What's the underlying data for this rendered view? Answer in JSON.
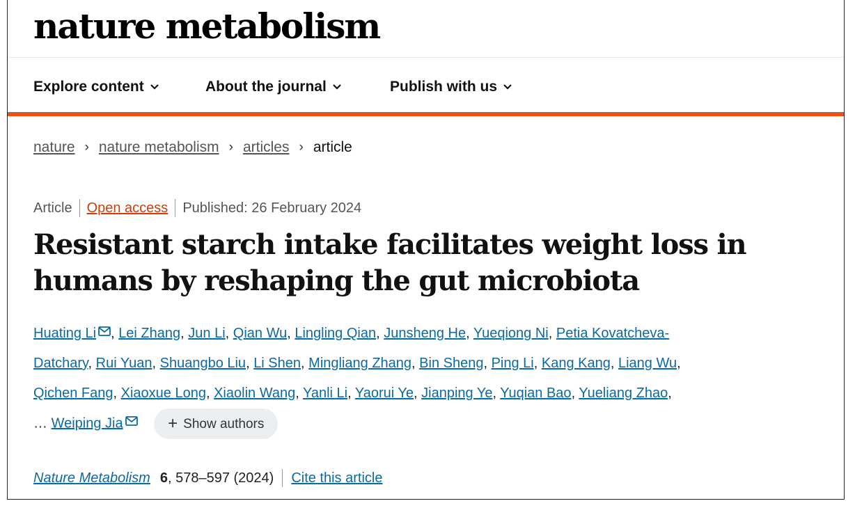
{
  "header": {
    "logo": "nature metabolism"
  },
  "nav": {
    "items": [
      {
        "label": "Explore content"
      },
      {
        "label": "About the journal"
      },
      {
        "label": "Publish with us"
      }
    ]
  },
  "breadcrumb": {
    "items": [
      "nature",
      "nature metabolism",
      "articles"
    ],
    "separator": "›",
    "current": "article"
  },
  "article": {
    "type": "Article",
    "access": "Open access",
    "published": "Published: 26 February 2024",
    "title": "Resistant starch intake facilitates weight loss in humans by reshaping the gut microbiota",
    "authors_line1": [
      "Huating Li",
      "Lei Zhang",
      "Jun Li",
      "Qian Wu",
      "Lingling Qian",
      "Junsheng He",
      "Yueqiong Ni",
      "Petia Kovatcheva-"
    ],
    "authors_line2": [
      "Datchary",
      "Rui Yuan",
      "Shuangbo Liu",
      "Li Shen",
      "Mingliang Zhang",
      "Bin Sheng",
      "Ping Li",
      "Kang Kang",
      "Liang Wu"
    ],
    "authors_line3": [
      "Qichen Fang",
      "Xiaoxue Long",
      "Xiaolin Wang",
      "Yanli Li",
      "Yaorui Ye",
      "Jianping Ye",
      "Yuqian Bao",
      "Yueliang Zhao"
    ],
    "ellipsis": "…",
    "last_author": "Weiping Jia",
    "show_authors": "Show authors",
    "journal": "Nature Metabolism",
    "volume": "6",
    "pages": ", 578–597 (2024)",
    "cite_label": "Cite this article"
  },
  "icons": {
    "chevron": "chevron-down-icon",
    "mail": "mail-icon",
    "plus": "plus-icon"
  },
  "colors": {
    "accent": "#e8501b",
    "link": "#0b6aa2",
    "open_access": "#c9400e",
    "button_bg": "#eceff1"
  }
}
